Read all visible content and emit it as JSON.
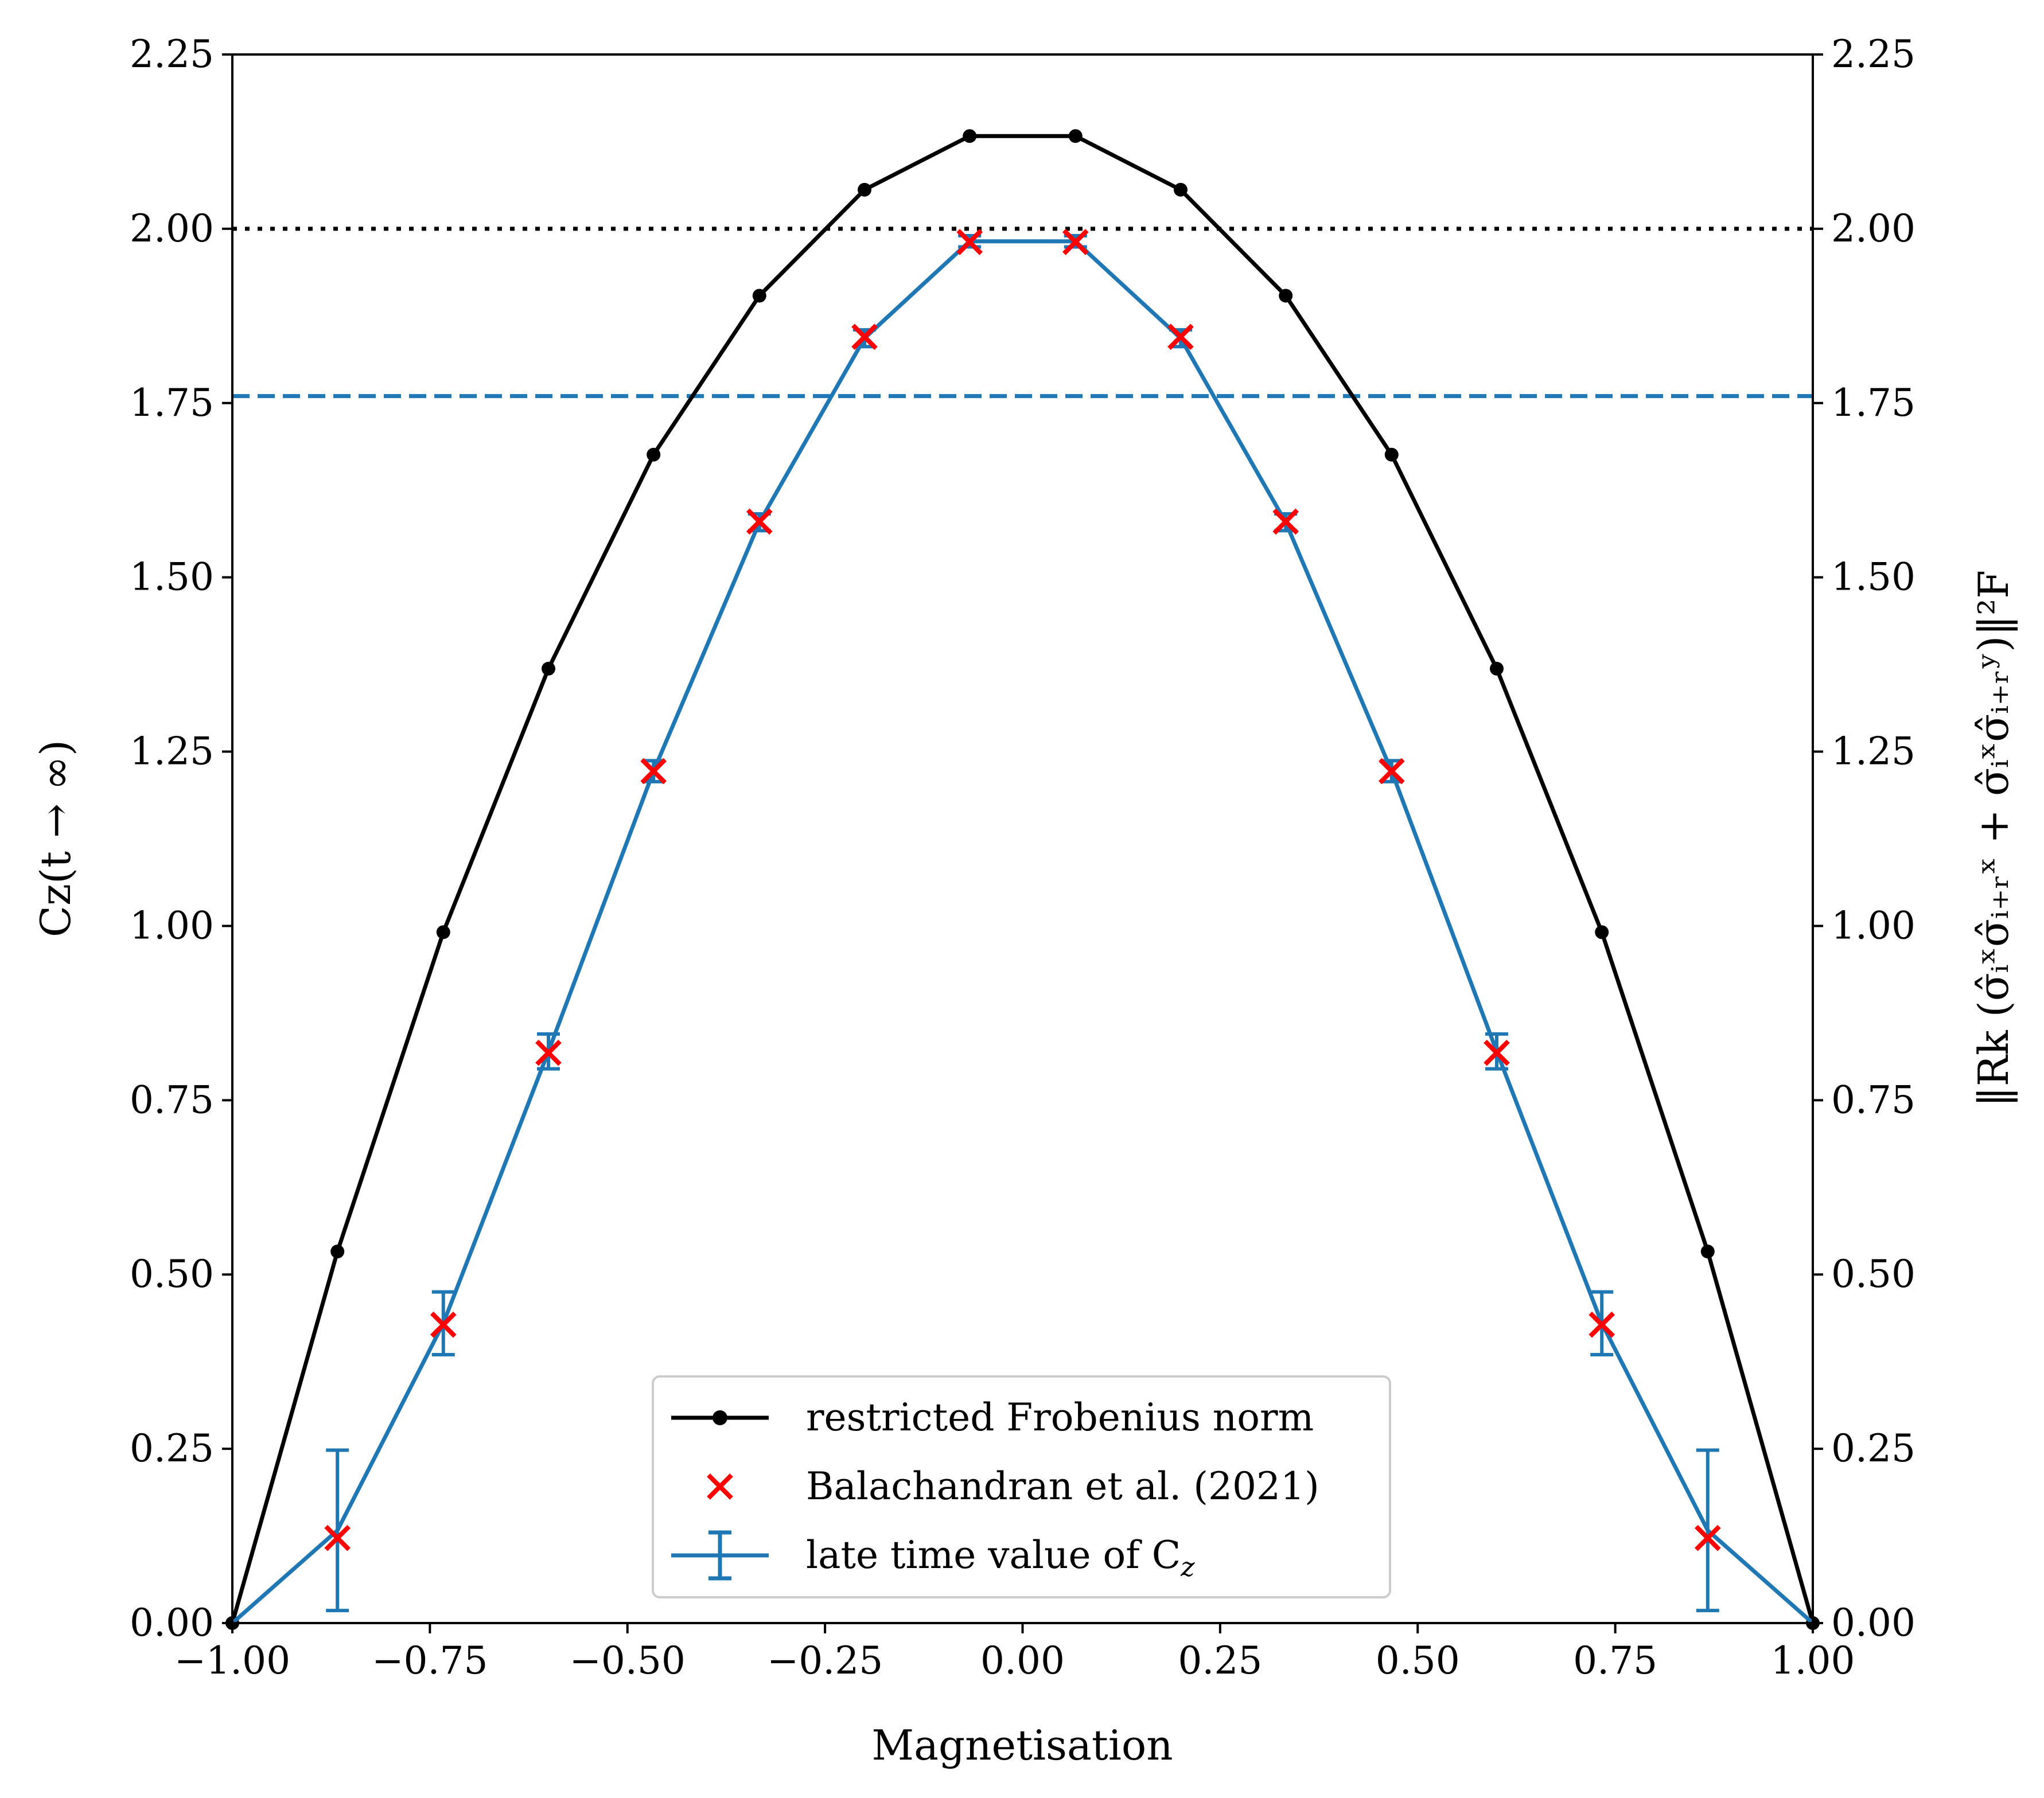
{
  "chart_data": {
    "type": "line",
    "xlabel": "Magnetisation",
    "ylabel": "Cz(t → ∞)",
    "ylabel_right": "‖Rk (σ̂ᵢˣσ̂ᵢ₊ᵣˣ + σ̂ᵢˣσ̂ᵢ₊ᵣʸ)‖²F",
    "xlim": [
      -1.0,
      1.0
    ],
    "ylim": [
      0.0,
      2.25
    ],
    "x_ticks": [
      "−1.00",
      "−0.75",
      "−0.50",
      "−0.25",
      "0.00",
      "0.25",
      "0.50",
      "0.75",
      "1.00"
    ],
    "y_ticks": [
      "0.00",
      "0.25",
      "0.50",
      "0.75",
      "1.00",
      "1.25",
      "1.50",
      "1.75",
      "2.00",
      "2.25"
    ],
    "grid": false,
    "legend_position": "bottom-center",
    "reference_lines": [
      {
        "y": 2.0,
        "style": "dotted",
        "color": "#000000"
      },
      {
        "y": 1.76,
        "style": "dashed",
        "color": "#1f77b4"
      }
    ],
    "series": [
      {
        "name": "restricted Frobenius norm",
        "kind": "line-marker",
        "color": "#000000",
        "x": [
          -1.0,
          -0.867,
          -0.733,
          -0.6,
          -0.467,
          -0.333,
          -0.2,
          -0.067,
          0.067,
          0.2,
          0.333,
          0.467,
          0.6,
          0.733,
          0.867,
          1.0
        ],
        "y": [
          0.0,
          0.533,
          0.991,
          1.369,
          1.676,
          1.904,
          2.056,
          2.133,
          2.133,
          2.056,
          1.904,
          1.676,
          1.369,
          0.991,
          0.533,
          0.0
        ]
      },
      {
        "name": "Balachandran et al. (2021)",
        "kind": "scatter-x",
        "color": "#ff0000",
        "x": [
          -0.867,
          -0.733,
          -0.6,
          -0.467,
          -0.333,
          -0.2,
          -0.067,
          0.067,
          0.2,
          0.333,
          0.467,
          0.6,
          0.733,
          0.867
        ],
        "y": [
          0.122,
          0.428,
          0.818,
          1.222,
          1.58,
          1.845,
          1.981,
          1.981,
          1.845,
          1.58,
          1.222,
          0.818,
          0.428,
          0.122
        ]
      },
      {
        "name": "late time value of Cz",
        "legend_label": "late time value of C",
        "legend_sub": "z",
        "kind": "errorbar",
        "color": "#1f77b4",
        "x": [
          -1.0,
          -0.867,
          -0.733,
          -0.6,
          -0.467,
          -0.333,
          -0.2,
          -0.067,
          0.067,
          0.2,
          0.333,
          0.467,
          0.6,
          0.733,
          0.867,
          1.0
        ],
        "y": [
          0.0,
          0.133,
          0.43,
          0.82,
          1.222,
          1.579,
          1.843,
          1.982,
          1.982,
          1.843,
          1.579,
          1.222,
          0.82,
          0.43,
          0.133,
          0.0
        ],
        "yerr": [
          0.0,
          0.115,
          0.045,
          0.025,
          0.015,
          0.012,
          0.012,
          0.008,
          0.008,
          0.012,
          0.012,
          0.015,
          0.025,
          0.045,
          0.115,
          0.0
        ]
      }
    ]
  }
}
